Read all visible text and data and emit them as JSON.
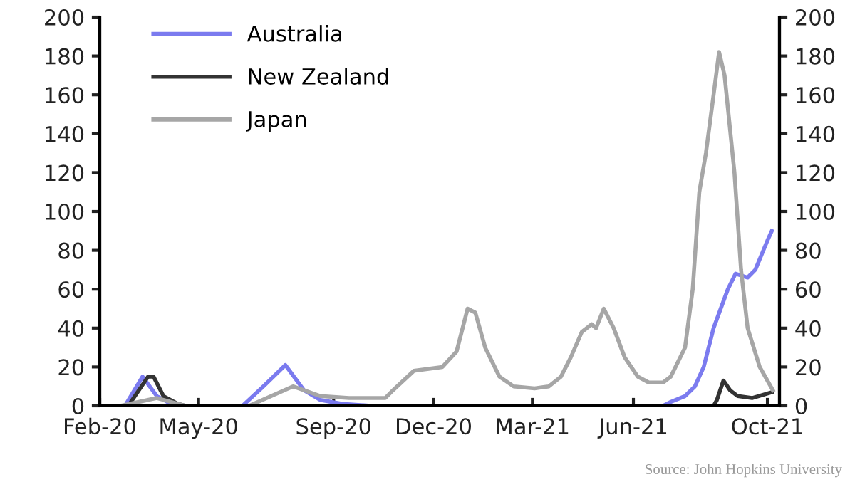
{
  "chart_data": {
    "type": "line",
    "ylim": [
      0,
      200
    ],
    "yticks": [
      0,
      20,
      40,
      60,
      80,
      100,
      120,
      140,
      160,
      180,
      200
    ],
    "y2lim": [
      0,
      200
    ],
    "y2ticks": [
      0,
      20,
      40,
      60,
      80,
      100,
      120,
      140,
      160,
      180,
      200
    ],
    "xlim": [
      "2020-02-01",
      "2021-10-12"
    ],
    "xticks": [
      {
        "value": "2020-02-01",
        "label": "Feb-20"
      },
      {
        "value": "2020-05-01",
        "label": "May-20"
      },
      {
        "value": "2020-09-01",
        "label": "Sep-20"
      },
      {
        "value": "2020-12-01",
        "label": "Dec-20"
      },
      {
        "value": "2021-03-01",
        "label": "Mar-21"
      },
      {
        "value": "2021-06-01",
        "label": "Jun-21"
      },
      {
        "value": "2021-10-01",
        "label": "Oct-21"
      }
    ],
    "grid": false,
    "legend": "top left",
    "marker": "none",
    "line_style": "solid",
    "annotations": [
      "Source: John Hopkins University"
    ],
    "series": [
      {
        "name": "Australia",
        "color": "#7b7bef",
        "x": [
          "2020-02-01",
          "2020-02-24",
          "2020-03-11",
          "2020-03-24",
          "2020-04-06",
          "2020-04-19",
          "2020-06-10",
          "2020-06-29",
          "2020-07-19",
          "2020-08-05",
          "2020-08-20",
          "2020-09-09",
          "2020-10-05",
          "2021-06-28",
          "2021-07-05",
          "2021-07-18",
          "2021-07-27",
          "2021-08-04",
          "2021-08-13",
          "2021-08-26",
          "2021-09-02",
          "2021-09-13",
          "2021-09-20",
          "2021-10-01",
          "2021-10-05"
        ],
        "values": [
          0,
          0,
          15,
          5,
          1,
          0,
          0,
          10,
          21,
          8,
          3,
          1,
          0,
          0,
          2,
          5,
          10,
          20,
          40,
          60,
          68,
          66,
          70,
          85,
          90
        ]
      },
      {
        "name": "New Zealand",
        "color": "#333333",
        "x": [
          "2020-02-01",
          "2020-02-27",
          "2020-03-16",
          "2020-03-21",
          "2020-03-30",
          "2020-04-12",
          "2020-04-19",
          "2021-08-13",
          "2021-08-16",
          "2021-08-22",
          "2021-08-28",
          "2021-09-04",
          "2021-09-17",
          "2021-10-05"
        ],
        "values": [
          0,
          0,
          15,
          15,
          5,
          1,
          0,
          0,
          3,
          13,
          8,
          5,
          4,
          7
        ]
      },
      {
        "name": "Japan",
        "color": "#a6a6a6",
        "x": [
          "2020-02-01",
          "2020-02-20",
          "2020-03-24",
          "2020-04-19",
          "2020-06-16",
          "2020-07-26",
          "2020-08-20",
          "2020-09-15",
          "2020-10-18",
          "2020-10-25",
          "2020-11-13",
          "2020-12-09",
          "2020-12-22",
          "2021-01-01",
          "2021-01-08",
          "2021-01-17",
          "2021-01-30",
          "2021-02-12",
          "2021-03-03",
          "2021-03-16",
          "2021-03-27",
          "2021-04-05",
          "2021-04-15",
          "2021-04-24",
          "2021-04-28",
          "2021-05-05",
          "2021-05-14",
          "2021-05-24",
          "2021-06-05",
          "2021-06-15",
          "2021-06-28",
          "2021-07-05",
          "2021-07-18",
          "2021-07-25",
          "2021-07-31",
          "2021-08-06",
          "2021-08-13",
          "2021-08-18",
          "2021-08-23",
          "2021-09-01",
          "2021-09-07",
          "2021-09-13",
          "2021-09-24",
          "2021-10-04",
          "2021-10-06"
        ],
        "values": [
          0,
          0,
          4,
          0,
          0,
          10,
          5,
          4,
          4,
          8,
          18,
          20,
          28,
          50,
          48,
          30,
          15,
          10,
          9,
          10,
          15,
          25,
          38,
          42,
          40,
          50,
          40,
          25,
          15,
          12,
          12,
          15,
          30,
          60,
          110,
          130,
          160,
          182,
          170,
          120,
          70,
          40,
          20,
          10,
          8
        ]
      }
    ]
  }
}
